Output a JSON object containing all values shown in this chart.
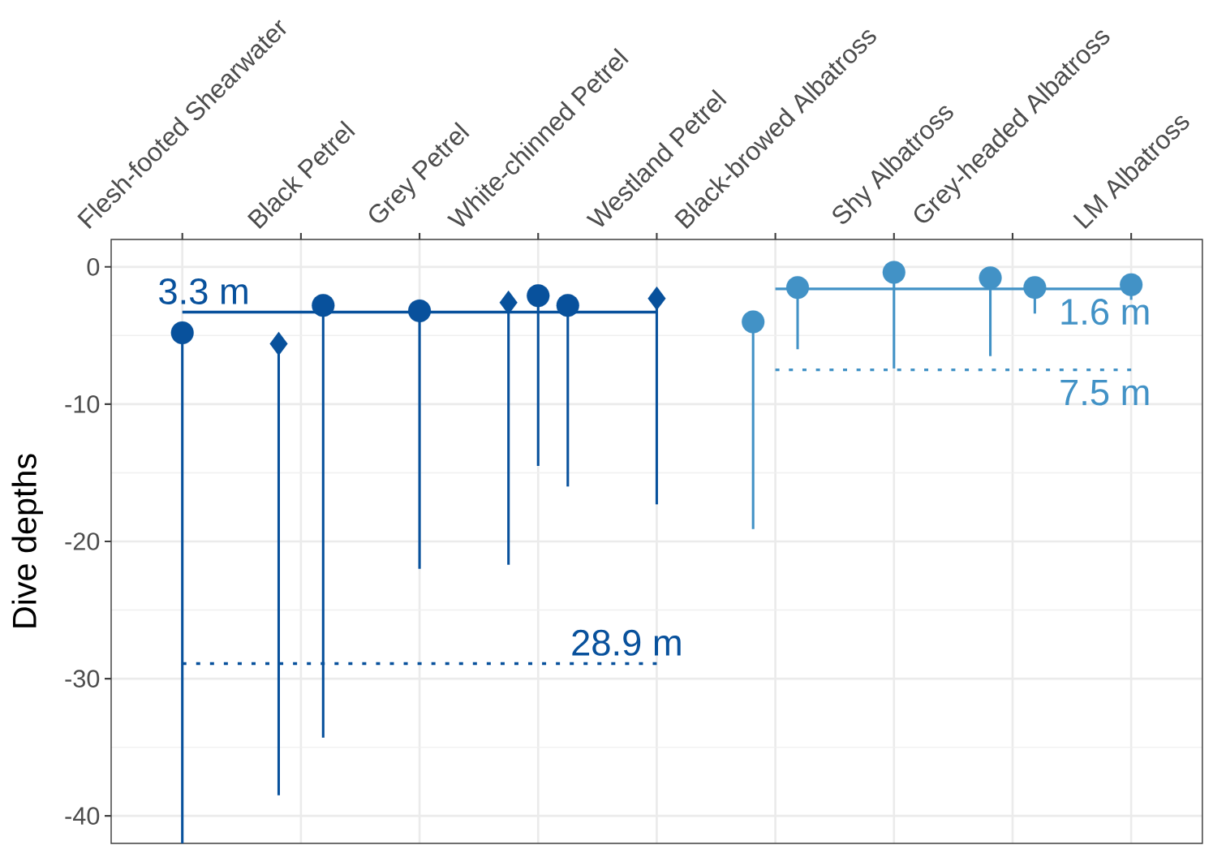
{
  "chart_data": {
    "type": "scatter",
    "ylabel": "Dive depths",
    "categories": [
      "Flesh-footed Shearwater",
      "Black Petrel",
      "Grey Petrel",
      "White-chinned Petrel",
      "Westland Petrel",
      "Black-browed Albatross",
      "Shy Albatross",
      "Grey-headed Albatross",
      "LM Albatross"
    ],
    "ylim": [
      -42,
      2
    ],
    "yticks": [
      -40,
      -30,
      -20,
      -10,
      0
    ],
    "grid": true,
    "series": [
      {
        "marker": "diamond",
        "color": "#08519c",
        "values": [
          null,
          -5.6,
          null,
          -2.6,
          -2.3,
          null,
          null,
          null,
          null
        ],
        "errors": [
          null,
          [
            -38.5,
            -5.6
          ],
          null,
          [
            -21.7,
            -2.6
          ],
          [
            -17.3,
            -2.3
          ],
          null,
          null,
          null,
          null
        ]
      },
      {
        "marker": "circle",
        "color": "#08519c",
        "values": [
          -4.8,
          -2.8,
          -3.2,
          -2.1,
          null,
          null,
          null,
          null,
          null
        ],
        "errors": [
          [
            -42,
            -4.8
          ],
          [
            -34.3,
            -2.8
          ],
          [
            -22.0,
            -3.2
          ],
          [
            -14.5,
            -2.1
          ],
          null,
          null,
          null,
          null,
          null
        ]
      },
      {
        "marker": "circle",
        "color": "#08519c",
        "values": [
          null,
          null,
          null,
          -2.8,
          null,
          null,
          null,
          null,
          null
        ],
        "errors": [
          null,
          null,
          null,
          [
            -16.0,
            -2.8
          ],
          null,
          null,
          null,
          null,
          null
        ]
      },
      {
        "marker": "circle",
        "color": "#4292c6",
        "values": [
          null,
          null,
          null,
          null,
          null,
          -4.0,
          -0.4,
          -0.8,
          -1.3
        ],
        "errors": [
          null,
          null,
          null,
          null,
          null,
          [
            -19.1,
            -4.0
          ],
          [
            -7.4,
            -0.4
          ],
          [
            -6.5,
            -0.8
          ],
          [
            -2.4,
            -1.3
          ]
        ]
      },
      {
        "marker": "circle",
        "color": "#4292c6",
        "values": [
          null,
          null,
          null,
          null,
          null,
          -1.5,
          null,
          -1.5,
          null
        ],
        "errors": [
          null,
          null,
          null,
          null,
          null,
          [
            -6.0,
            -1.5
          ],
          null,
          [
            -3.4,
            -1.5
          ],
          null
        ]
      },
      {
        "type": "line",
        "name": "3.3 m",
        "line_style": "solid",
        "color": "#08519c",
        "values": [
          -3.3,
          -3.3,
          -3.3,
          -3.3,
          -3.3,
          null,
          null,
          null,
          null
        ]
      },
      {
        "type": "line",
        "name": "28.9 m",
        "line_style": "dotted",
        "color": "#08519c",
        "values": [
          -28.9,
          -28.9,
          -28.9,
          -28.9,
          -28.9,
          null,
          null,
          null,
          null
        ]
      },
      {
        "type": "line",
        "name": "1.6 m",
        "line_style": "solid",
        "color": "#4292c6",
        "values": [
          null,
          null,
          null,
          null,
          null,
          -1.6,
          -1.6,
          -1.6,
          -1.6
        ]
      },
      {
        "type": "line",
        "name": "7.5 m",
        "line_style": "dotted",
        "color": "#4292c6",
        "values": [
          null,
          null,
          null,
          null,
          null,
          -7.5,
          -7.5,
          -7.5,
          -7.5
        ]
      }
    ]
  }
}
